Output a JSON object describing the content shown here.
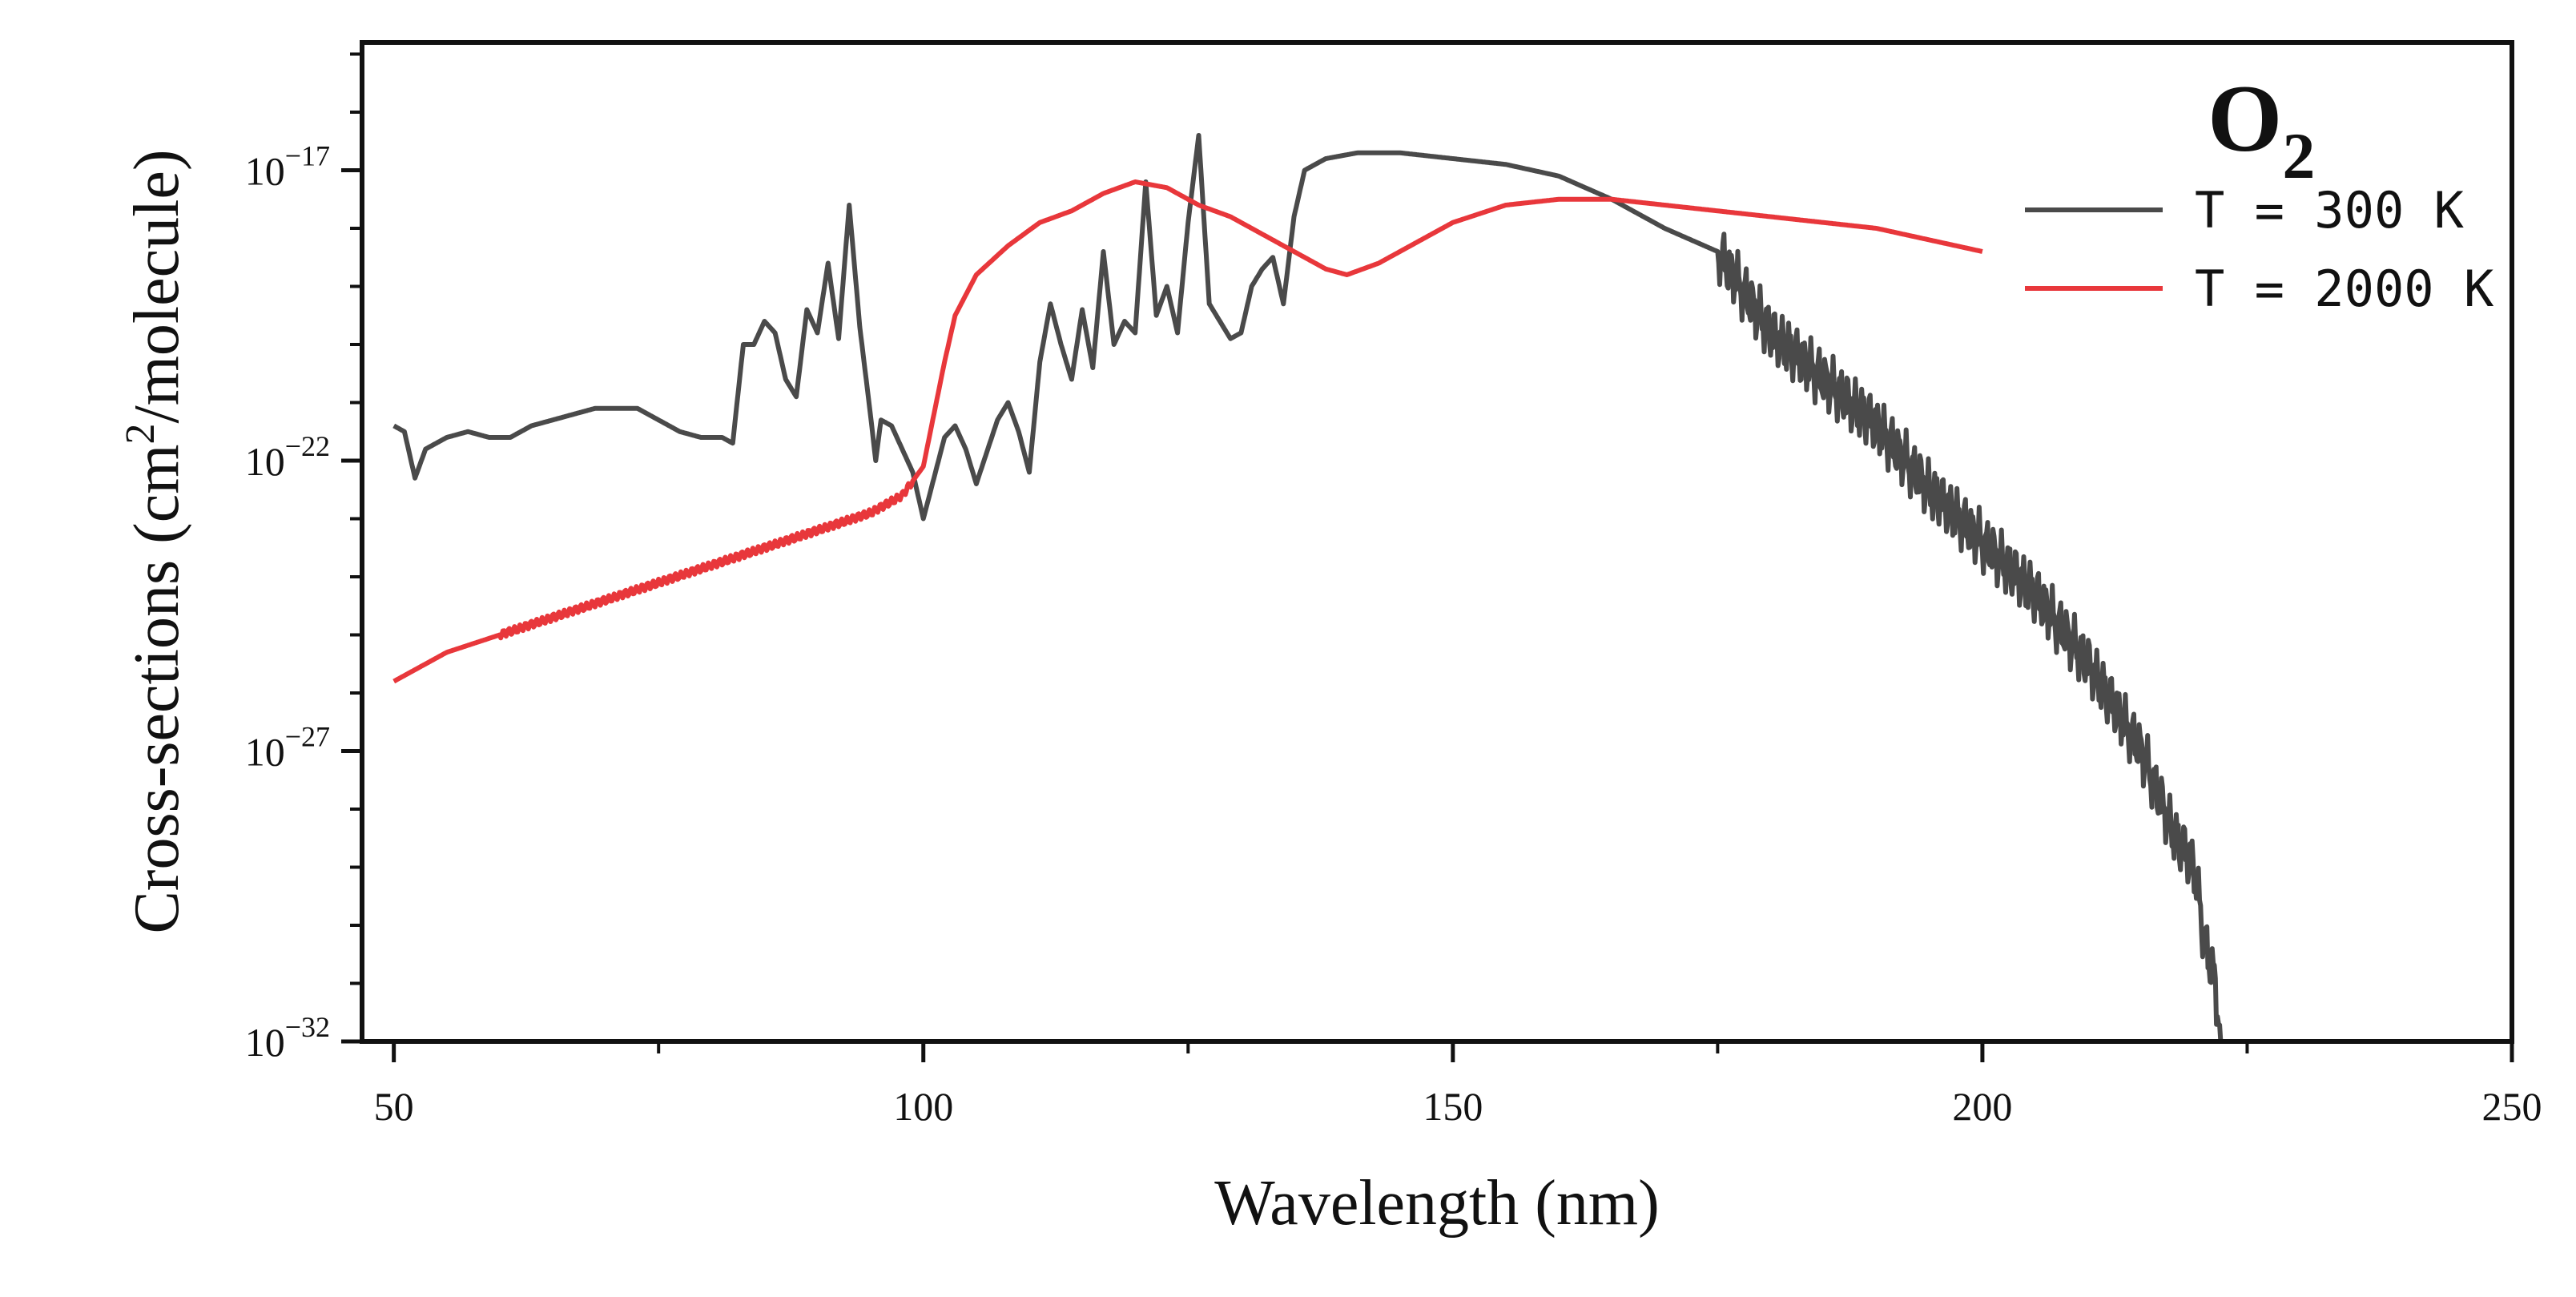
{
  "chart_data": {
    "type": "line",
    "title": "O2",
    "title_main": "O",
    "title_sub": "2",
    "xlabel": "Wavelength (nm)",
    "ylabel": "Cross-sections (cm2/molecule)",
    "ylabel_parts": {
      "pre": "Cross-sections (cm",
      "sup": "2",
      "post": "/molecule)"
    },
    "xlim": [
      47,
      250
    ],
    "ylim_log10": [
      -32,
      -14.8
    ],
    "y_scale": "log",
    "x_ticks": [
      50,
      100,
      150,
      200,
      250
    ],
    "x_tick_labels": [
      "50",
      "100",
      "150",
      "200",
      "250"
    ],
    "y_ticks_log10": [
      -32,
      -27,
      -22,
      -17
    ],
    "y_tick_labels": [
      {
        "base": "10",
        "exp": "−32"
      },
      {
        "base": "10",
        "exp": "−27"
      },
      {
        "base": "10",
        "exp": "−22"
      },
      {
        "base": "10",
        "exp": "−17"
      }
    ],
    "legend_position": "top-right",
    "series": [
      {
        "name": "T  = 300 K",
        "color": "#4a4a4a",
        "anchors_log10": [
          [
            50,
            -21.4
          ],
          [
            51,
            -21.5
          ],
          [
            52,
            -22.3
          ],
          [
            53,
            -21.8
          ],
          [
            55,
            -21.6
          ],
          [
            57,
            -21.5
          ],
          [
            59,
            -21.6
          ],
          [
            61,
            -21.6
          ],
          [
            63,
            -21.4
          ],
          [
            65,
            -21.3
          ],
          [
            67,
            -21.2
          ],
          [
            69,
            -21.1
          ],
          [
            71,
            -21.1
          ],
          [
            73,
            -21.1
          ],
          [
            75,
            -21.3
          ],
          [
            77,
            -21.5
          ],
          [
            79,
            -21.6
          ],
          [
            81,
            -21.6
          ],
          [
            82,
            -21.7
          ],
          [
            83,
            -20.0
          ],
          [
            84,
            -20.0
          ],
          [
            85,
            -19.6
          ],
          [
            86,
            -19.8
          ],
          [
            87,
            -20.6
          ],
          [
            88,
            -20.9
          ],
          [
            89,
            -19.4
          ],
          [
            90,
            -19.8
          ],
          [
            91,
            -18.6
          ],
          [
            92,
            -19.9
          ],
          [
            93,
            -17.6
          ],
          [
            94,
            -19.7
          ],
          [
            95,
            -21.2
          ],
          [
            95.5,
            -22.0
          ],
          [
            96,
            -21.3
          ],
          [
            97,
            -21.4
          ],
          [
            98,
            -21.8
          ],
          [
            99,
            -22.2
          ],
          [
            100,
            -23.0
          ],
          [
            102,
            -21.6
          ],
          [
            103,
            -21.4
          ],
          [
            104,
            -21.8
          ],
          [
            105,
            -22.4
          ],
          [
            107,
            -21.3
          ],
          [
            108,
            -21.0
          ],
          [
            109,
            -21.5
          ],
          [
            110,
            -22.2
          ],
          [
            111,
            -20.3
          ],
          [
            112,
            -19.3
          ],
          [
            113,
            -20.0
          ],
          [
            114,
            -20.6
          ],
          [
            115,
            -19.4
          ],
          [
            116,
            -20.4
          ],
          [
            117,
            -18.4
          ],
          [
            118,
            -20.0
          ],
          [
            119,
            -19.6
          ],
          [
            120,
            -19.8
          ],
          [
            121,
            -17.2
          ],
          [
            122,
            -19.5
          ],
          [
            123,
            -19.0
          ],
          [
            124,
            -19.8
          ],
          [
            125,
            -17.9
          ],
          [
            126,
            -16.4
          ],
          [
            127,
            -19.3
          ],
          [
            128,
            -19.6
          ],
          [
            129,
            -19.9
          ],
          [
            130,
            -19.8
          ],
          [
            131,
            -19.0
          ],
          [
            132,
            -18.7
          ],
          [
            133,
            -18.5
          ],
          [
            134,
            -19.3
          ],
          [
            135,
            -17.8
          ],
          [
            136,
            -17.0
          ],
          [
            138,
            -16.8
          ],
          [
            141,
            -16.7
          ],
          [
            145,
            -16.7
          ],
          [
            150,
            -16.8
          ],
          [
            155,
            -16.9
          ],
          [
            160,
            -17.1
          ],
          [
            165,
            -17.5
          ],
          [
            170,
            -18.0
          ],
          [
            175,
            -18.4
          ],
          [
            180,
            -19.8
          ],
          [
            185,
            -20.6
          ],
          [
            190,
            -21.4
          ],
          [
            195,
            -22.5
          ],
          [
            200,
            -23.4
          ],
          [
            205,
            -24.3
          ],
          [
            210,
            -25.5
          ],
          [
            215,
            -27.0
          ],
          [
            218,
            -28.4
          ],
          [
            220,
            -29.0
          ],
          [
            221,
            -30.3
          ],
          [
            222,
            -31.0
          ],
          [
            222.5,
            -32.0
          ]
        ]
      },
      {
        "name": "T  = 2000 K",
        "color": "#e8373b",
        "anchors_log10": [
          [
            50,
            -25.8
          ],
          [
            55,
            -25.3
          ],
          [
            60,
            -25.0
          ],
          [
            65,
            -24.7
          ],
          [
            70,
            -24.4
          ],
          [
            75,
            -24.1
          ],
          [
            80,
            -23.8
          ],
          [
            85,
            -23.5
          ],
          [
            90,
            -23.2
          ],
          [
            95,
            -22.9
          ],
          [
            98,
            -22.6
          ],
          [
            100,
            -22.1
          ],
          [
            102,
            -20.3
          ],
          [
            103,
            -19.5
          ],
          [
            105,
            -18.8
          ],
          [
            108,
            -18.3
          ],
          [
            111,
            -17.9
          ],
          [
            114,
            -17.7
          ],
          [
            117,
            -17.4
          ],
          [
            120,
            -17.2
          ],
          [
            123,
            -17.3
          ],
          [
            126,
            -17.6
          ],
          [
            129,
            -17.8
          ],
          [
            132,
            -18.1
          ],
          [
            135,
            -18.4
          ],
          [
            138,
            -18.7
          ],
          [
            140,
            -18.8
          ],
          [
            143,
            -18.6
          ],
          [
            147,
            -18.2
          ],
          [
            150,
            -17.9
          ],
          [
            155,
            -17.6
          ],
          [
            160,
            -17.5
          ],
          [
            165,
            -17.5
          ],
          [
            170,
            -17.6
          ],
          [
            175,
            -17.7
          ],
          [
            180,
            -17.8
          ],
          [
            185,
            -17.9
          ],
          [
            190,
            -18.0
          ],
          [
            195,
            -18.2
          ],
          [
            200,
            -18.4
          ]
        ]
      }
    ]
  }
}
